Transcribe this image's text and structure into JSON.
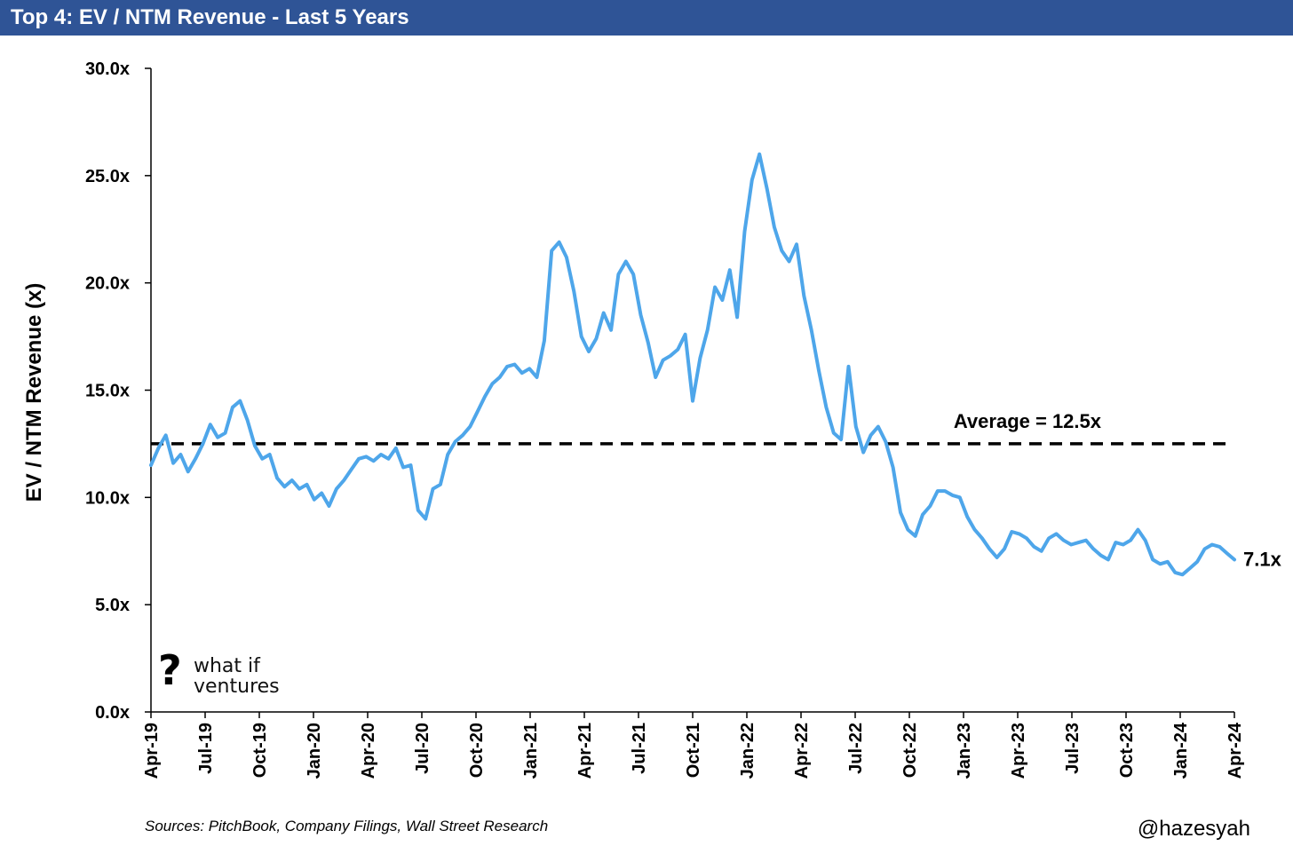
{
  "header": {
    "title": "Top 4: EV / NTM Revenue - Last 5 Years"
  },
  "footer": {
    "source": "Sources: PitchBook, Company Filings, Wall Street Research",
    "handle": "@hazesyah"
  },
  "logo": {
    "icon": "question-mark-icon",
    "line1": "what if",
    "line2": "ventures"
  },
  "colors": {
    "header_bg": "#2f5496",
    "series": "#4ea6ea",
    "average": "#000000"
  },
  "chart_data": {
    "type": "line",
    "title": "Top 4: EV / NTM Revenue - Last 5 Years",
    "ylabel": "EV / NTM Revenue (x)",
    "xlabel": "",
    "ylim": [
      0,
      30
    ],
    "y_ticks": [
      "0.0x",
      "5.0x",
      "10.0x",
      "15.0x",
      "20.0x",
      "25.0x",
      "30.0x"
    ],
    "x_ticks": [
      "Apr-19",
      "Jul-19",
      "Oct-19",
      "Jan-20",
      "Apr-20",
      "Jul-20",
      "Oct-20",
      "Jan-21",
      "Apr-21",
      "Jul-21",
      "Oct-21",
      "Jan-22",
      "Apr-22",
      "Jul-22",
      "Oct-22",
      "Jan-23",
      "Apr-23",
      "Jul-23",
      "Oct-23",
      "Jan-24",
      "Apr-24"
    ],
    "grid": false,
    "series": [
      {
        "values": [
          11.5,
          12.3,
          12.9,
          11.6,
          12.0,
          11.2,
          11.8,
          12.5,
          13.4,
          12.8,
          13.0,
          14.2,
          14.5,
          13.6,
          12.4,
          11.8,
          12.0,
          10.9,
          10.5,
          10.8,
          10.4,
          10.6,
          9.9,
          10.2,
          9.6,
          10.4,
          10.8,
          11.3,
          11.8,
          11.9,
          11.7,
          12.0,
          11.8,
          12.3,
          11.4,
          11.5,
          9.4,
          9.0,
          10.4,
          10.6,
          12.0,
          12.6,
          12.9,
          13.3,
          14.0,
          14.7,
          15.3,
          15.6,
          16.1,
          16.2,
          15.8,
          16.0,
          15.6,
          17.3,
          21.5,
          21.9,
          21.2,
          19.6,
          17.5,
          16.8,
          17.4,
          18.6,
          17.8,
          20.4,
          21.0,
          20.4,
          18.5,
          17.2,
          15.6,
          16.4,
          16.6,
          16.9,
          17.6,
          14.5,
          16.5,
          17.8,
          19.8,
          19.2,
          20.6,
          18.4,
          22.4,
          24.8,
          26.0,
          24.4,
          22.6,
          21.5,
          21.0,
          21.8,
          19.4,
          17.8,
          15.9,
          14.2,
          13.0,
          12.7,
          16.1,
          13.3,
          12.1,
          12.9,
          13.3,
          12.6,
          11.4,
          9.3,
          8.5,
          8.2,
          9.2,
          9.6,
          10.3,
          10.3,
          10.1,
          10.0,
          9.1,
          8.5,
          8.1,
          7.6,
          7.2,
          7.6,
          8.4,
          8.3,
          8.1,
          7.7,
          7.5,
          8.1,
          8.3,
          8.0,
          7.8,
          7.9,
          8.0,
          7.6,
          7.3,
          7.1,
          7.9,
          7.8,
          8.0,
          8.5,
          8.0,
          7.1,
          6.9,
          7.0,
          6.5,
          6.4,
          6.7,
          7.0,
          7.6,
          7.8,
          7.7,
          7.4,
          7.1
        ],
        "start": "Apr-19",
        "end": "Apr-24",
        "color": "#4ea6ea"
      }
    ],
    "reference_lines": [
      {
        "type": "average",
        "y": 12.5,
        "label": "Average = 12.5x",
        "style": "dashed"
      }
    ],
    "annotations": [
      {
        "text": "7.1x",
        "y": 7.1,
        "position": "line-end"
      }
    ]
  }
}
